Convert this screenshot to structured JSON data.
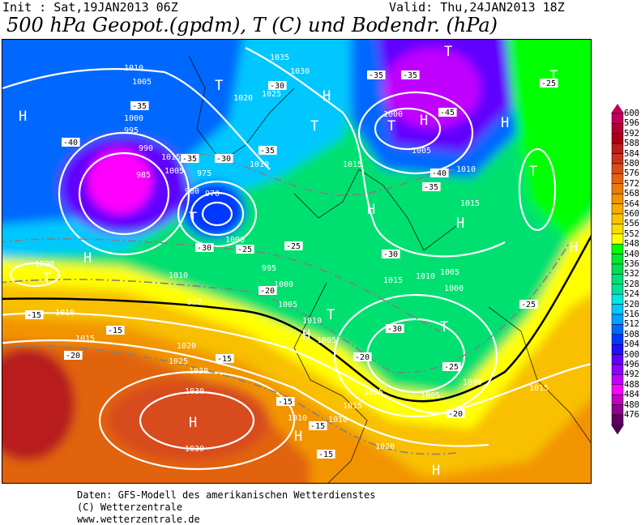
{
  "header": {
    "init": "Init : Sat,19JAN2013 06Z",
    "valid": "Valid: Thu,24JAN2013 18Z",
    "title": "500 hPa Geopot.(gpdm), T (C) und Bodendr. (hPa)"
  },
  "legend": {
    "labels": [
      "600",
      "596",
      "592",
      "588",
      "584",
      "580",
      "576",
      "572",
      "568",
      "564",
      "560",
      "556",
      "552",
      "548",
      "540",
      "536",
      "532",
      "528",
      "524",
      "520",
      "516",
      "512",
      "508",
      "504",
      "500",
      "496",
      "492",
      "488",
      "484",
      "480",
      "476"
    ],
    "colors": [
      "#c0005a",
      "#b00030",
      "#a80018",
      "#b81e1e",
      "#c83420",
      "#d84c1c",
      "#e26410",
      "#ea7c0c",
      "#f29400",
      "#f8ac00",
      "#f8c400",
      "#f8dc00",
      "#ffff00",
      "#00ff00",
      "#00e834",
      "#00e050",
      "#00e078",
      "#00e098",
      "#00e8e0",
      "#00c8ff",
      "#00a0ff",
      "#0068ff",
      "#0038ff",
      "#2010ff",
      "#6000ff",
      "#8c00ff",
      "#c000ff",
      "#ff00ff",
      "#c000c0",
      "#900090",
      "#600060"
    ],
    "top_color": "#c0005a",
    "bottom_color": "#500050"
  },
  "map": {
    "pressure_labels": [
      "1010",
      "1005",
      "1000",
      "995",
      "990",
      "985",
      "980",
      "975",
      "970",
      "1035",
      "1030",
      "1025",
      "1020",
      "1015",
      "1010",
      "1005",
      "1000",
      "995",
      "1000",
      "1005",
      "1010",
      "1015",
      "1010",
      "1005",
      "1000",
      "1010",
      "1015",
      "1020",
      "1025",
      "1030",
      "1030",
      "1020",
      "1015",
      "1010",
      "1005",
      "1000",
      "1015",
      "1010",
      "1010",
      "1015",
      "1000",
      "1005",
      "1010",
      "1015",
      "1025",
      "1030",
      "1005",
      "1000"
    ],
    "temp_labels": [
      "-35",
      "-40",
      "-35",
      "-30",
      "-35",
      "-30",
      "-25",
      "-30",
      "-35",
      "-45",
      "-40",
      "-35",
      "-30",
      "-25",
      "-20",
      "-15",
      "-15",
      "-15",
      "-20",
      "-25",
      "-30",
      "-25",
      "-20",
      "-15",
      "-15",
      "-15",
      "-20",
      "-25",
      "-35"
    ],
    "geopot_label": "552",
    "high_markers": [
      "H",
      "H",
      "H",
      "H",
      "H",
      "H",
      "H",
      "H",
      "H",
      "H",
      "H",
      "H"
    ],
    "low_markers": [
      "T",
      "T",
      "T",
      "T",
      "T",
      "T",
      "T",
      "T",
      "T",
      "T"
    ]
  },
  "footer": {
    "line1": "Daten: GFS-Modell des amerikanischen Wetterdienstes",
    "line2": "(C) Wetterzentrale",
    "line3": "www.wetterzentrale.de"
  }
}
